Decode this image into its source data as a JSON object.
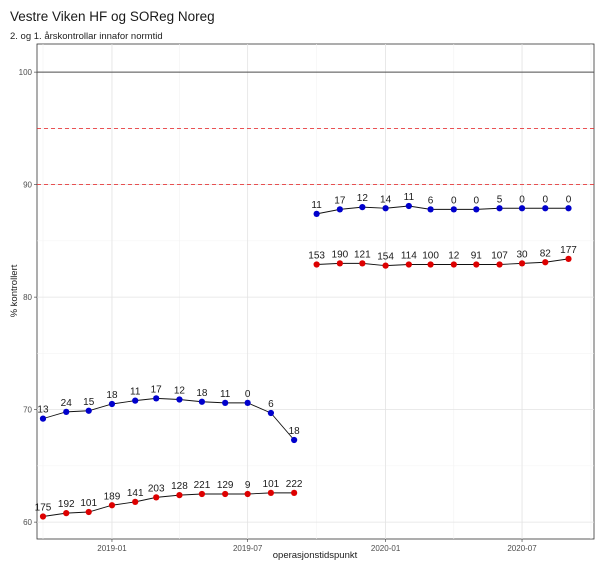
{
  "chart_data": {
    "type": "line",
    "title": "Vestre Viken HF og SOReg Noreg",
    "subtitle": "2. og 1. årskontrollar innafor normtid",
    "xlabel": "operasjonstidspunkt",
    "ylabel": "% kontrollert",
    "ylim": [
      58.5,
      102.5
    ],
    "xlim": [
      "2018-09-23",
      "2020-10-05"
    ],
    "x_ticks": [
      "2019-01",
      "2019-07",
      "2020-01",
      "2020-07"
    ],
    "y_ticks": [
      60,
      70,
      80,
      90,
      100
    ],
    "grid": true,
    "reference_lines": [
      {
        "y": 100,
        "style": "solid",
        "color": "#4d4d4d"
      },
      {
        "y": 95,
        "style": "dashed",
        "color": "#e41a1c"
      },
      {
        "y": 90,
        "style": "dashed",
        "color": "#e41a1c"
      }
    ],
    "series": [
      {
        "color": "#0000cc",
        "segments": [
          {
            "x": [
              "2018-10",
              "2018-11",
              "2018-12",
              "2019-01",
              "2019-02",
              "2019-03",
              "2019-04",
              "2019-05",
              "2019-06",
              "2019-07",
              "2019-08",
              "2019-09"
            ],
            "values": [
              69.2,
              69.8,
              69.9,
              70.5,
              70.8,
              71.0,
              70.9,
              70.7,
              70.6,
              70.6,
              69.7,
              67.3
            ],
            "labels": [
              "13",
              "24",
              "15",
              "18",
              "11",
              "17",
              "12",
              "18",
              "11",
              "0",
              "6",
              "18"
            ]
          },
          {
            "x": [
              "2019-10",
              "2019-11",
              "2019-12",
              "2020-01",
              "2020-02",
              "2020-03",
              "2020-04",
              "2020-05",
              "2020-06",
              "2020-07",
              "2020-08",
              "2020-09"
            ],
            "values": [
              87.4,
              87.8,
              88.0,
              87.9,
              88.1,
              87.8,
              87.8,
              87.8,
              87.9,
              87.9,
              87.9,
              87.9
            ],
            "labels": [
              "11",
              "17",
              "12",
              "14",
              "11",
              "6",
              "0",
              "0",
              "5",
              "0",
              "0",
              "0"
            ]
          }
        ]
      },
      {
        "color": "#dd0000",
        "segments": [
          {
            "x": [
              "2018-10",
              "2018-11",
              "2018-12",
              "2019-01",
              "2019-02",
              "2019-03",
              "2019-04",
              "2019-05",
              "2019-06",
              "2019-07",
              "2019-08",
              "2019-09"
            ],
            "values": [
              60.5,
              60.8,
              60.9,
              61.5,
              61.8,
              62.2,
              62.4,
              62.5,
              62.5,
              62.5,
              62.6,
              62.6
            ],
            "labels": [
              "175",
              "192",
              "101",
              "189",
              "141",
              "203",
              "128",
              "221",
              "129",
              "9",
              "101",
              "222"
            ]
          },
          {
            "x": [
              "2019-10",
              "2019-11",
              "2019-12",
              "2020-01",
              "2020-02",
              "2020-03",
              "2020-04",
              "2020-05",
              "2020-06",
              "2020-07",
              "2020-08",
              "2020-09"
            ],
            "values": [
              82.9,
              83.0,
              83.0,
              82.8,
              82.9,
              82.9,
              82.9,
              82.9,
              82.9,
              83.0,
              83.1,
              83.4
            ],
            "labels": [
              "153",
              "190",
              "121",
              "154",
              "114",
              "100",
              "12",
              "91",
              "107",
              "30",
              "82",
              "177"
            ]
          }
        ]
      }
    ]
  }
}
